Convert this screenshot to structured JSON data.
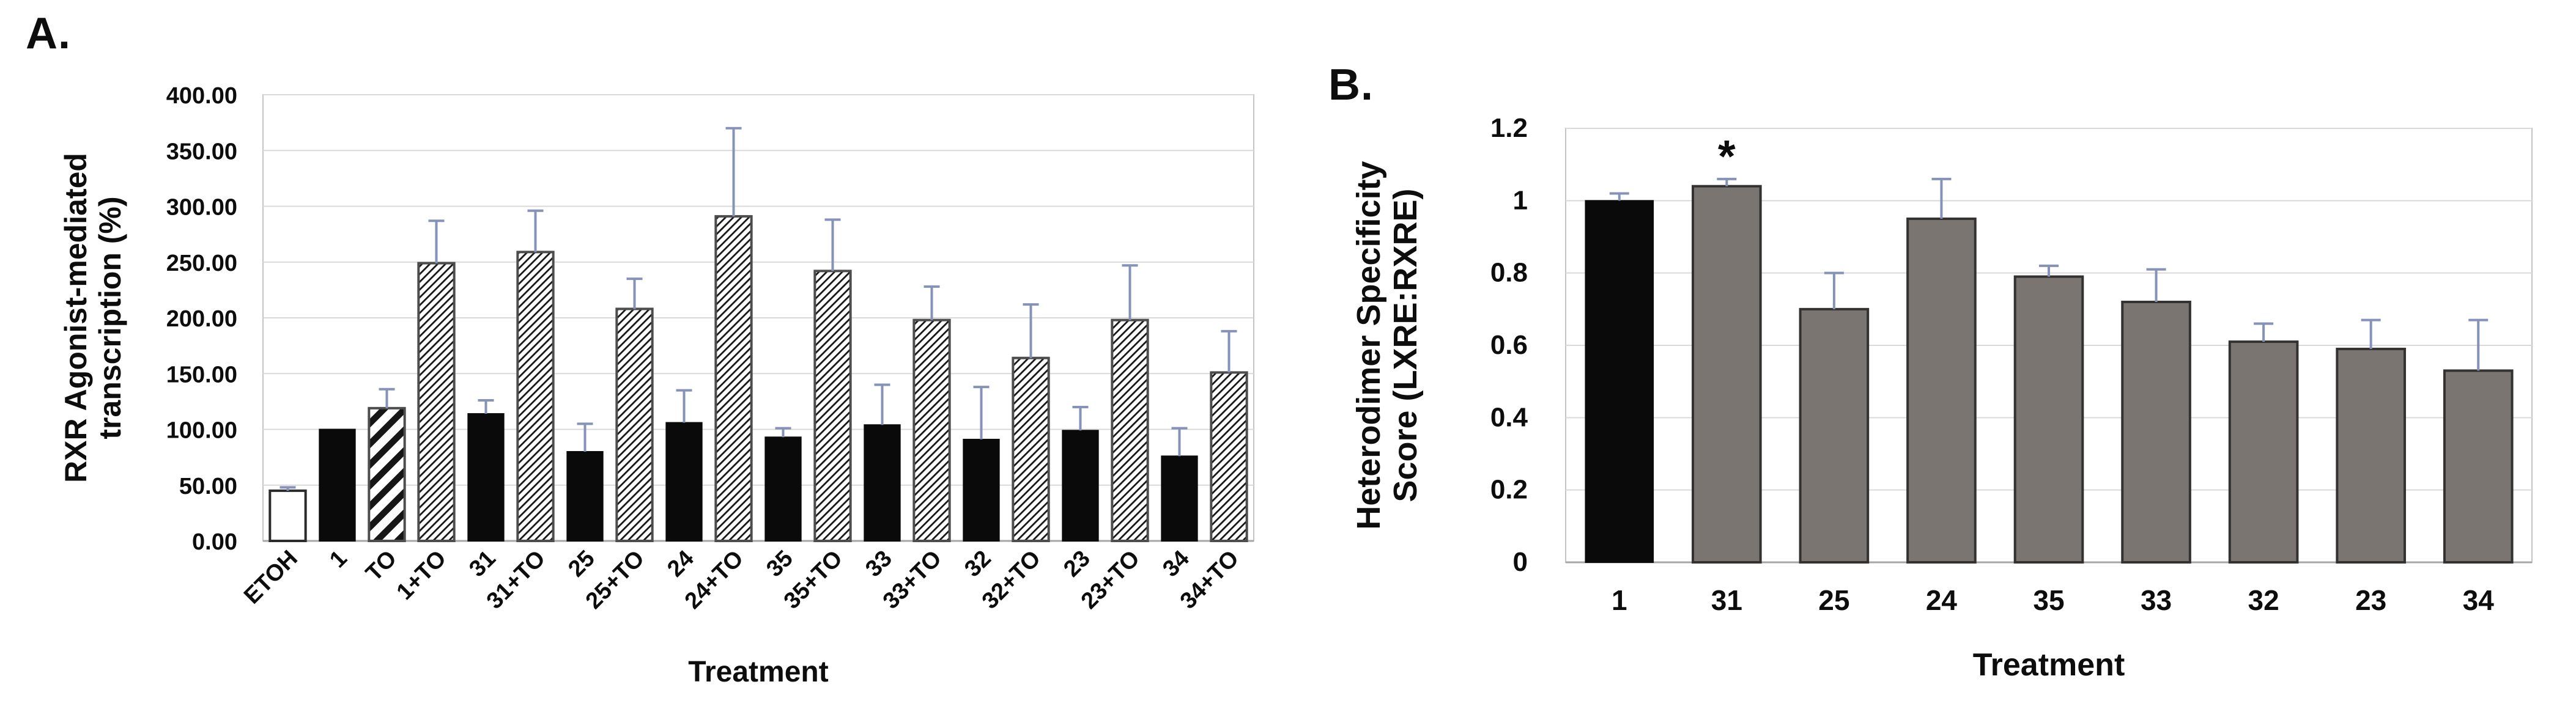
{
  "figure": {
    "background": "#ffffff",
    "text_color": "#0d0d0d"
  },
  "chart_data": [
    {
      "type": "bar",
      "panel_label": "A.",
      "title": "",
      "xlabel": "Treatment",
      "ylabel": "RXR Agonist-mediated transcription (%)",
      "ylabel_lines": [
        "RXR Agonist-mediated",
        "transcription (%)"
      ],
      "ylim": [
        0,
        400
      ],
      "grid": true,
      "legend": "none",
      "ytick_values": [
        0,
        50,
        100,
        150,
        200,
        250,
        300,
        350,
        400
      ],
      "ytick_labels": [
        "0.00",
        "50.00",
        "100.00",
        "150.00",
        "200.00",
        "250.00",
        "300.00",
        "350.00",
        "400.00"
      ],
      "categories": [
        "ETOH",
        "1",
        "TO",
        "1+TO",
        "31",
        "31+TO",
        "25",
        "25+TO",
        "24",
        "24+TO",
        "35",
        "35+TO",
        "33",
        "33+TO",
        "32",
        "32+TO",
        "23",
        "23+TO",
        "34",
        "34+TO"
      ],
      "values": [
        45,
        100,
        119,
        249,
        114,
        259,
        80,
        208,
        106,
        291,
        93,
        242,
        104,
        198,
        91,
        164,
        99,
        198,
        76,
        151
      ],
      "errors_plus": [
        3,
        0,
        17,
        38,
        12,
        37,
        25,
        27,
        29,
        79,
        8,
        46,
        36,
        30,
        47,
        48,
        21,
        49,
        25,
        37
      ],
      "bar_styles": [
        "white",
        "black",
        "stripe_wide",
        "stripe_fine",
        "black",
        "stripe_fine",
        "black",
        "stripe_fine",
        "black",
        "stripe_fine",
        "black",
        "stripe_fine",
        "black",
        "stripe_fine",
        "black",
        "stripe_fine",
        "black",
        "stripe_fine",
        "black",
        "stripe_fine"
      ],
      "annotations": [],
      "colors": {
        "black_fill": "#0a0a0a",
        "white_fill": "#ffffff",
        "stripe_color": "#161616",
        "pattern_border": "#4d4d4d",
        "white_bar_border": "#2b2b2b",
        "error_bar": "#8693b8",
        "gridline": "#d9d9d9",
        "plot_border": "#c4c4c4",
        "axis_line": "#a6a6a6"
      }
    },
    {
      "type": "bar",
      "panel_label": "B.",
      "title": "",
      "xlabel": "Treatment",
      "ylabel": "Heterodimer Specificity Score (LXRE:RXRE)",
      "ylabel_lines": [
        "Heterodimer Specificity",
        "Score (LXRE:RXRE)"
      ],
      "ylim": [
        0,
        1.2
      ],
      "grid": true,
      "legend": "none",
      "ytick_values": [
        0,
        0.2,
        0.4,
        0.6,
        0.8,
        1,
        1.2
      ],
      "ytick_labels": [
        "0",
        "0.2",
        "0.4",
        "0.6",
        "0.8",
        "1",
        "1.2"
      ],
      "categories": [
        "1",
        "31",
        "25",
        "24",
        "35",
        "33",
        "32",
        "23",
        "34"
      ],
      "values": [
        1.0,
        1.04,
        0.7,
        0.95,
        0.79,
        0.72,
        0.61,
        0.59,
        0.53
      ],
      "errors_plus": [
        0.02,
        0.02,
        0.1,
        0.11,
        0.03,
        0.09,
        0.05,
        0.08,
        0.14
      ],
      "bar_styles": [
        "black",
        "gray",
        "gray",
        "gray",
        "gray",
        "gray",
        "gray",
        "gray",
        "gray"
      ],
      "annotations": [
        {
          "category_index": 1,
          "text": "*"
        }
      ],
      "colors": {
        "black_fill": "#0a0a0a",
        "gray_fill": "#7b7572",
        "gray_bar_border": "#333230",
        "error_bar": "#8693b8",
        "gridline": "#d9d9d9",
        "plot_border": "#c4c4c4",
        "axis_line": "#a6a6a6"
      }
    }
  ]
}
